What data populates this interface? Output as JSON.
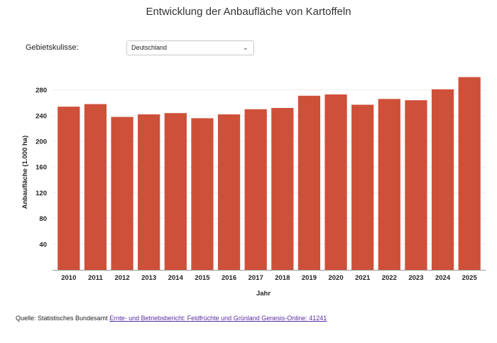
{
  "title": "Entwicklung der Anbaufläche von Kartoffeln",
  "filter": {
    "label": "Gebietskulisse:",
    "selected": "Deutschland"
  },
  "source": {
    "prefix": "Quelle: Statistisches Bundesamt",
    "link_text": "Ernte- und Betriebsbericht: Feldfrüchte und Grünland Genesis-Online: 41241"
  },
  "colors": {
    "bar": "#cf5039",
    "grid": "#ececec",
    "axis": "#999999"
  },
  "chart_data": {
    "type": "bar",
    "xlabel": "Jahr",
    "ylabel": "Anbaufläche (1.000 ha)",
    "categories": [
      "2010",
      "2011",
      "2012",
      "2013",
      "2014",
      "2015",
      "2016",
      "2017",
      "2018",
      "2019",
      "2020",
      "2021",
      "2022",
      "2023",
      "2024",
      "2025"
    ],
    "values": [
      254,
      258,
      238,
      242,
      244,
      236,
      242,
      250,
      252,
      271,
      273,
      257,
      266,
      264,
      281,
      300
    ],
    "yticks": [
      40,
      80,
      120,
      160,
      200,
      240,
      280
    ],
    "ylim": [
      0,
      315
    ],
    "grid": true,
    "legend": "none"
  }
}
